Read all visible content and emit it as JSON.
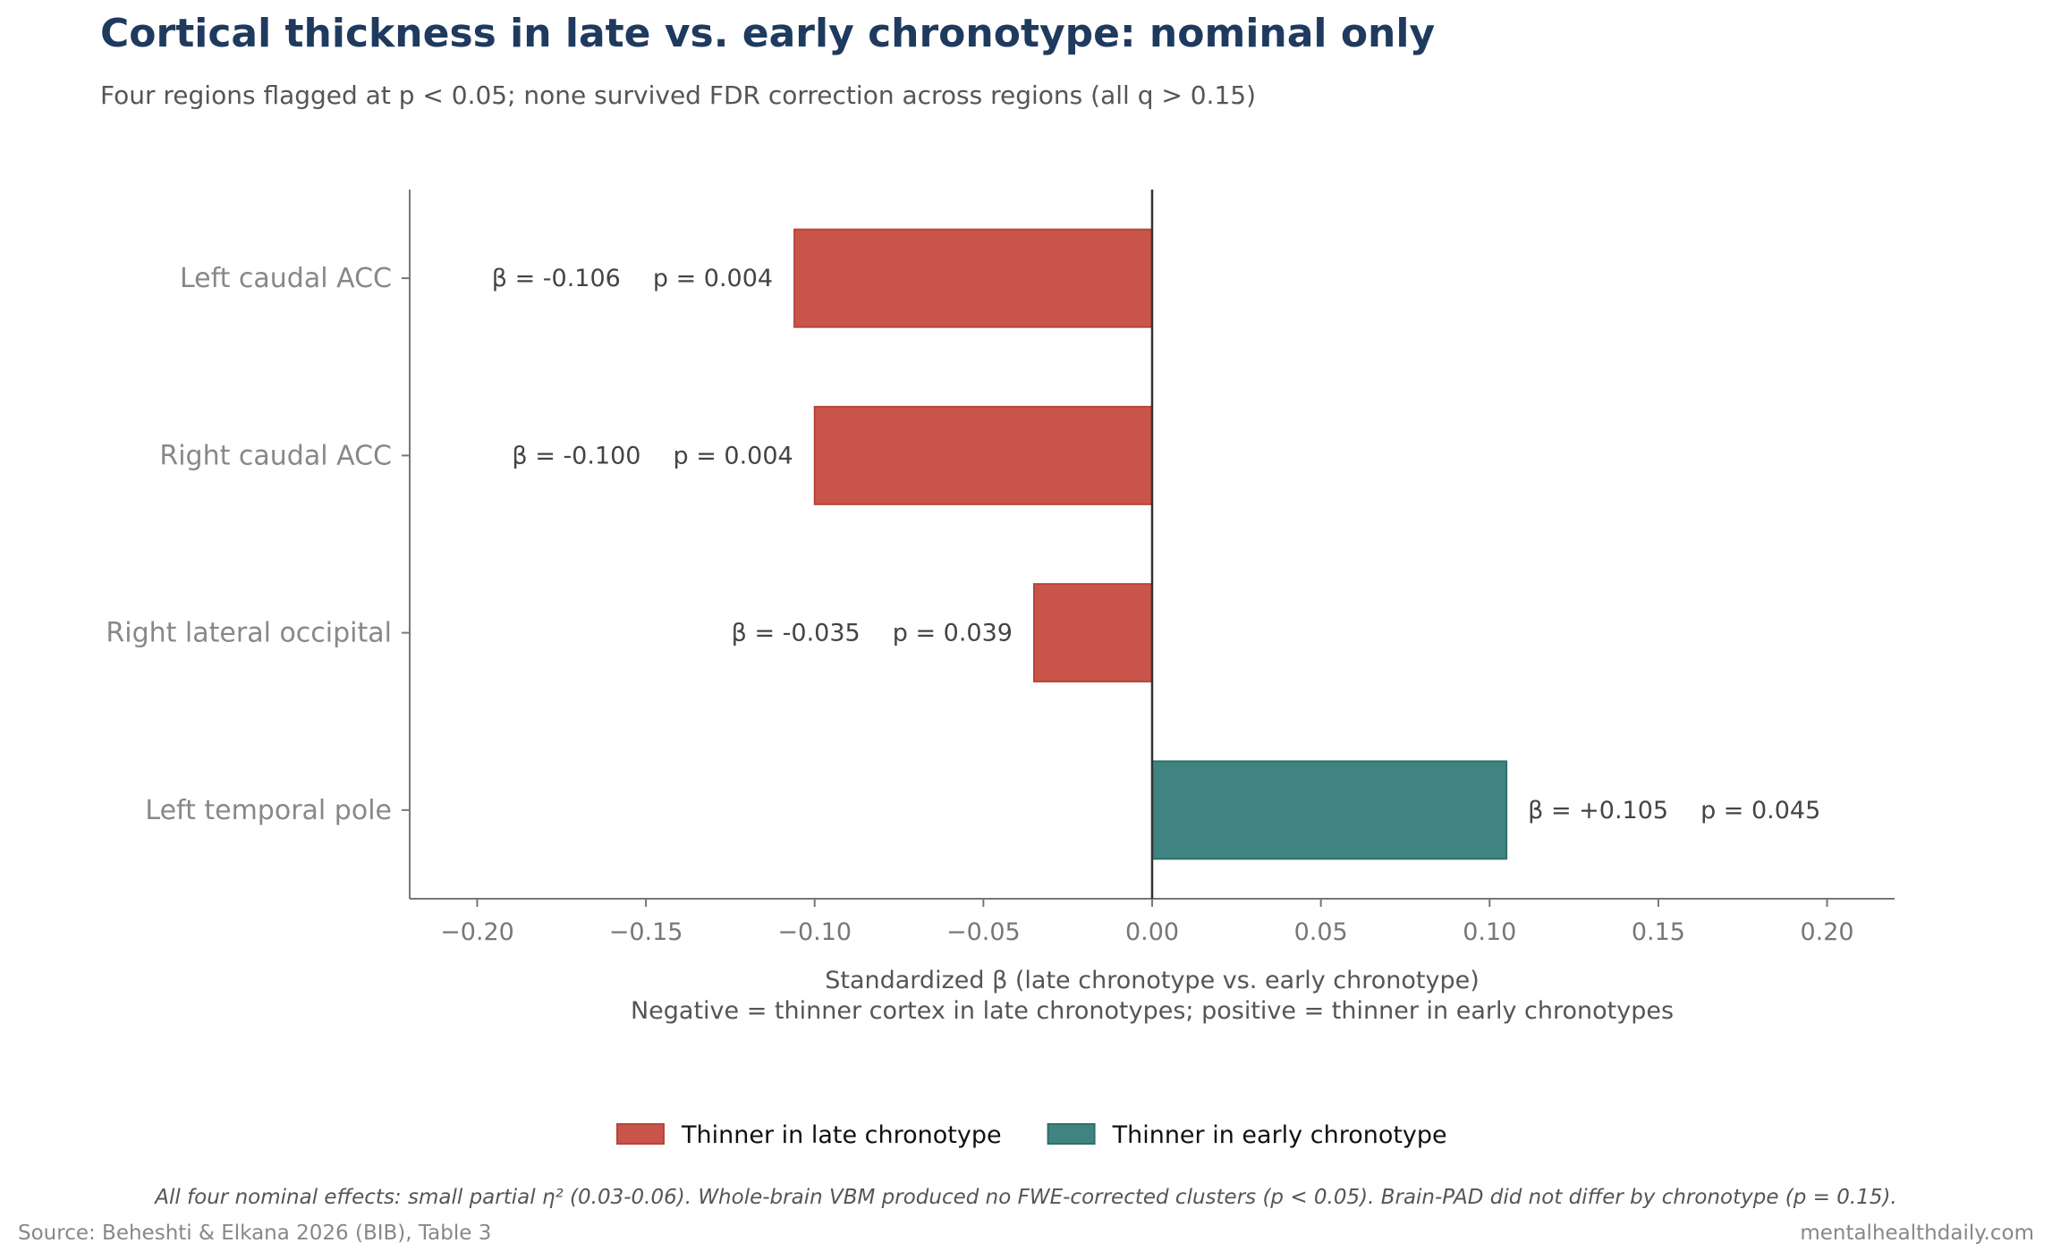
{
  "title": "Cortical thickness in late vs. early chronotype: nominal only",
  "subtitle": "Four regions flagged at p < 0.05; none survived FDR correction across regions (all q > 0.15)",
  "chart_data": {
    "type": "bar",
    "orientation": "horizontal",
    "categories": [
      "Left caudal ACC",
      "Right caudal ACC",
      "Right lateral occipital",
      "Left temporal pole"
    ],
    "values": [
      -0.106,
      -0.1,
      -0.035,
      0.105
    ],
    "p_values": [
      "0.004",
      "0.004",
      "0.039",
      "0.045"
    ],
    "bar_labels": [
      {
        "beta": "β = -0.106",
        "p": "p = 0.004"
      },
      {
        "beta": "β = -0.100",
        "p": "p = 0.004"
      },
      {
        "beta": "β = -0.035",
        "p": "p = 0.039"
      },
      {
        "beta": "β = +0.105",
        "p": "p = 0.045"
      }
    ],
    "xlim": [
      -0.22,
      0.22
    ],
    "xticks": [
      -0.2,
      -0.15,
      -0.1,
      -0.05,
      0.0,
      0.05,
      0.1,
      0.15,
      0.2
    ],
    "xtick_labels": [
      "−0.20",
      "−0.15",
      "−0.10",
      "−0.05",
      "0.00",
      "0.05",
      "0.10",
      "0.15",
      "0.20"
    ],
    "xlabel": "Standardized β (late chronotype vs. early chronotype)",
    "xlabel_line2": "Negative = thinner cortex in late chronotypes; positive = thinner in early chronotypes",
    "grid": false,
    "legend_position": "bottom-center",
    "legend": [
      {
        "label": "Thinner in late chronotype",
        "color": "#c9544a"
      },
      {
        "label": "Thinner in early chronotype",
        "color": "#3f8480"
      }
    ],
    "colors": {
      "negative": "#c9544a",
      "positive": "#3f8480"
    }
  },
  "footnote": "All four nominal effects: small partial η² (0.03-0.06). Whole-brain VBM produced no FWE-corrected clusters (p < 0.05). Brain-PAD did not differ by chronotype (p = 0.15).",
  "source": "Source: Beheshti & Elkana 2026 (BIB), Table 3",
  "brand": "mentalhealthdaily.com"
}
